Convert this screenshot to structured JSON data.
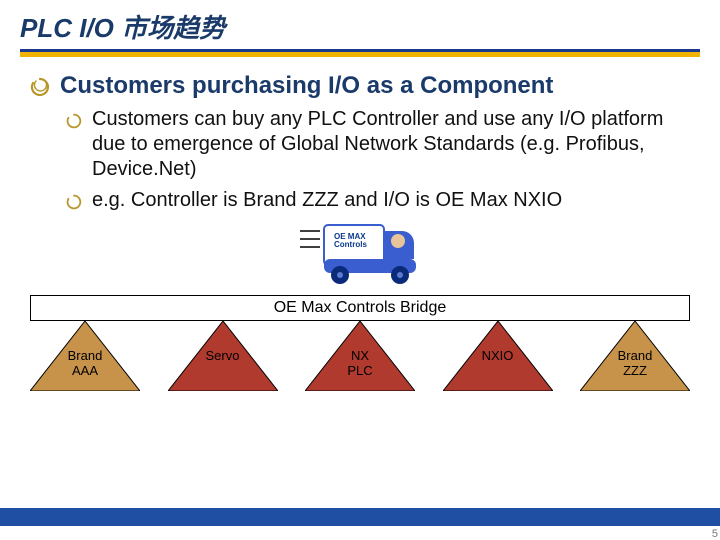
{
  "colors": {
    "title_text": "#1a3a6a",
    "underline_top": "#1a3a8e",
    "underline_bottom": "#f2b200",
    "bullet": "#b8962a",
    "lvl1_text": "#1a3a6a",
    "body_text": "#111111",
    "truck_body": "#3a5ecf",
    "truck_cab": "#ffffff",
    "truck_cab_border": "#3a5ecf",
    "wheel": "#0a2a7a",
    "pier_outer_fill": "#c7924a",
    "pier_inner_fill": "#b03a2e",
    "bridge_border": "#000000",
    "footer_band": "#1f4fa3"
  },
  "title": "PLC I/O 市场趋势",
  "level1": "Customers purchasing I/O as a Component",
  "level2": [
    "Customers can buy any PLC Controller and use any I/O platform due to emergence of Global Network Standards (e.g. Profibus, Device.Net)",
    "e.g. Controller is Brand ZZZ and I/O is OE Max NXIO"
  ],
  "truck": {
    "line1": "OE MAX",
    "line2": "Controls"
  },
  "bridge_label": "OE Max Controls Bridge",
  "piers": [
    {
      "label_line1": "Brand",
      "label_line2": "AAA",
      "type": "outer"
    },
    {
      "label_line1": "Servo",
      "label_line2": "",
      "type": "inner"
    },
    {
      "label_line1": "NX",
      "label_line2": "PLC",
      "type": "inner"
    },
    {
      "label_line1": "NXIO",
      "label_line2": "",
      "type": "inner"
    },
    {
      "label_line1": "Brand",
      "label_line2": "ZZZ",
      "type": "outer"
    }
  ],
  "page_number": "5",
  "fonts": {
    "title_pt": 26,
    "lvl1_pt": 24,
    "lvl2_pt": 20,
    "bridge_pt": 16,
    "pier_pt": 13
  }
}
